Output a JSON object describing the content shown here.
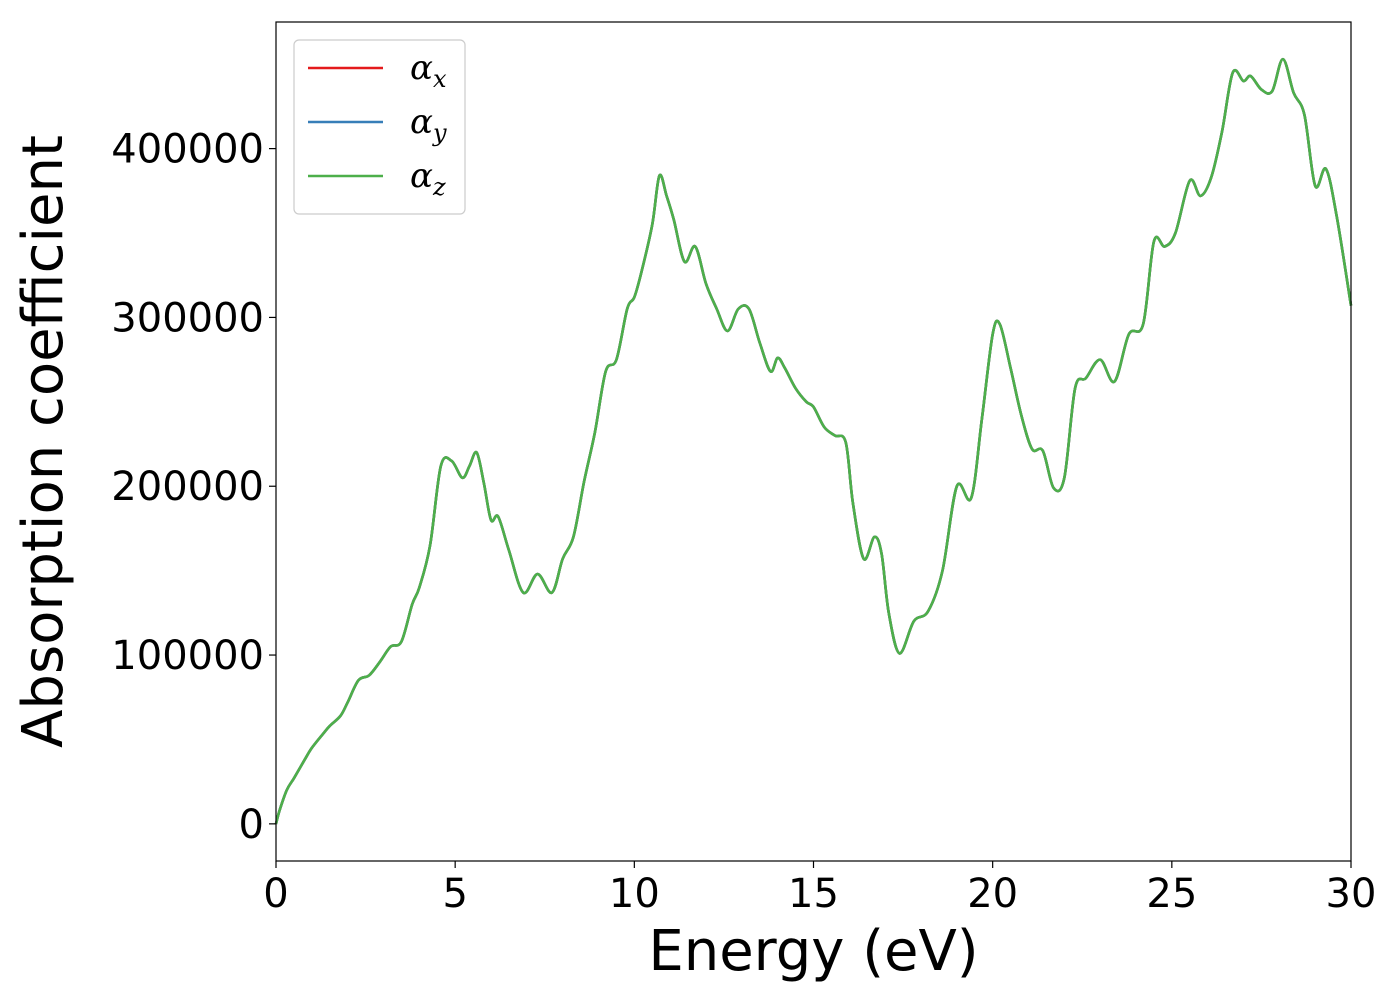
{
  "chart_data": {
    "type": "line",
    "title": "",
    "xlabel": "Energy (eV)",
    "ylabel": "Absorption coefficient",
    "xlim": [
      0,
      30
    ],
    "ylim": [
      -22000,
      475000
    ],
    "x_ticks": [
      0,
      5,
      10,
      15,
      20,
      25,
      30
    ],
    "y_ticks": [
      0,
      100000,
      200000,
      300000,
      400000
    ],
    "grid": false,
    "legend_position": "top-left",
    "series": [
      {
        "name": "α_x",
        "base": "α",
        "sub": "x",
        "color": "#e41a1c",
        "x": [
          0,
          0.1,
          0.3,
          0.5,
          0.8,
          1.0,
          1.3,
          1.5,
          1.8,
          2.0,
          2.3,
          2.6,
          2.9,
          3.2,
          3.5,
          3.8,
          4.0,
          4.3,
          4.6,
          4.9,
          5.2,
          5.4,
          5.6,
          5.8,
          6.0,
          6.2,
          6.5,
          6.9,
          7.3,
          7.7,
          8.0,
          8.3,
          8.6,
          8.9,
          9.2,
          9.5,
          9.8,
          10.0,
          10.2,
          10.5,
          10.7,
          10.9,
          11.1,
          11.4,
          11.7,
          12.0,
          12.3,
          12.6,
          12.9,
          13.2,
          13.5,
          13.8,
          14.0,
          14.2,
          14.5,
          14.8,
          15.0,
          15.3,
          15.6,
          15.9,
          16.1,
          16.4,
          16.7,
          16.9,
          17.1,
          17.4,
          17.8,
          18.2,
          18.6,
          19.0,
          19.4,
          19.7,
          20.0,
          20.2,
          20.5,
          20.8,
          21.1,
          21.4,
          21.7,
          22.0,
          22.3,
          22.6,
          23.0,
          23.4,
          23.8,
          24.2,
          24.5,
          24.8,
          25.1,
          25.5,
          25.8,
          26.1,
          26.4,
          26.7,
          27.0,
          27.2,
          27.5,
          27.8,
          28.1,
          28.4,
          28.7,
          29.0,
          29.3,
          29.6,
          30.0
        ],
        "y": [
          0,
          8000,
          20000,
          27000,
          38000,
          45000,
          53000,
          58000,
          64000,
          72000,
          85000,
          88000,
          96000,
          105000,
          108000,
          130000,
          140000,
          165000,
          212000,
          215000,
          205000,
          212000,
          220000,
          202000,
          180000,
          182000,
          162000,
          137000,
          148000,
          137000,
          157000,
          170000,
          203000,
          232000,
          268000,
          275000,
          305000,
          312000,
          327000,
          355000,
          384000,
          372000,
          358000,
          333000,
          342000,
          320000,
          305000,
          292000,
          305000,
          305000,
          285000,
          268000,
          276000,
          270000,
          258000,
          250000,
          247000,
          235000,
          230000,
          226000,
          190000,
          157000,
          170000,
          160000,
          125000,
          101000,
          120000,
          126000,
          150000,
          200000,
          193000,
          240000,
          290000,
          296000,
          270000,
          242000,
          222000,
          221000,
          199000,
          205000,
          258000,
          264000,
          275000,
          262000,
          290000,
          296000,
          345000,
          342000,
          350000,
          381000,
          372000,
          383000,
          410000,
          445000,
          440000,
          443000,
          435000,
          434000,
          453000,
          433000,
          420000,
          378000,
          388000,
          360000,
          307000
        ]
      },
      {
        "name": "α_y",
        "base": "α",
        "sub": "y",
        "color": "#377eb8",
        "x": [
          0,
          0.1,
          0.3,
          0.5,
          0.8,
          1.0,
          1.3,
          1.5,
          1.8,
          2.0,
          2.3,
          2.6,
          2.9,
          3.2,
          3.5,
          3.8,
          4.0,
          4.3,
          4.6,
          4.9,
          5.2,
          5.4,
          5.6,
          5.8,
          6.0,
          6.2,
          6.5,
          6.9,
          7.3,
          7.7,
          8.0,
          8.3,
          8.6,
          8.9,
          9.2,
          9.5,
          9.8,
          10.0,
          10.2,
          10.5,
          10.7,
          10.9,
          11.1,
          11.4,
          11.7,
          12.0,
          12.3,
          12.6,
          12.9,
          13.2,
          13.5,
          13.8,
          14.0,
          14.2,
          14.5,
          14.8,
          15.0,
          15.3,
          15.6,
          15.9,
          16.1,
          16.4,
          16.7,
          16.9,
          17.1,
          17.4,
          17.8,
          18.2,
          18.6,
          19.0,
          19.4,
          19.7,
          20.0,
          20.2,
          20.5,
          20.8,
          21.1,
          21.4,
          21.7,
          22.0,
          22.3,
          22.6,
          23.0,
          23.4,
          23.8,
          24.2,
          24.5,
          24.8,
          25.1,
          25.5,
          25.8,
          26.1,
          26.4,
          26.7,
          27.0,
          27.2,
          27.5,
          27.8,
          28.1,
          28.4,
          28.7,
          29.0,
          29.3,
          29.6,
          30.0
        ],
        "y": [
          0,
          8000,
          20000,
          27000,
          38000,
          45000,
          53000,
          58000,
          64000,
          72000,
          85000,
          88000,
          96000,
          105000,
          108000,
          130000,
          140000,
          165000,
          212000,
          215000,
          205000,
          212000,
          220000,
          202000,
          180000,
          182000,
          162000,
          137000,
          148000,
          137000,
          157000,
          170000,
          203000,
          232000,
          268000,
          275000,
          305000,
          312000,
          327000,
          355000,
          384000,
          372000,
          358000,
          333000,
          342000,
          320000,
          305000,
          292000,
          305000,
          305000,
          285000,
          268000,
          276000,
          270000,
          258000,
          250000,
          247000,
          235000,
          230000,
          226000,
          190000,
          157000,
          170000,
          160000,
          125000,
          101000,
          120000,
          126000,
          150000,
          200000,
          193000,
          240000,
          290000,
          296000,
          270000,
          242000,
          222000,
          221000,
          199000,
          205000,
          258000,
          264000,
          275000,
          262000,
          290000,
          296000,
          345000,
          342000,
          350000,
          381000,
          372000,
          383000,
          410000,
          445000,
          440000,
          443000,
          435000,
          434000,
          453000,
          433000,
          420000,
          378000,
          388000,
          360000,
          307000
        ]
      },
      {
        "name": "α_z",
        "base": "α",
        "sub": "z",
        "color": "#4daf4a",
        "x": [
          0,
          0.1,
          0.3,
          0.5,
          0.8,
          1.0,
          1.3,
          1.5,
          1.8,
          2.0,
          2.3,
          2.6,
          2.9,
          3.2,
          3.5,
          3.8,
          4.0,
          4.3,
          4.6,
          4.9,
          5.2,
          5.4,
          5.6,
          5.8,
          6.0,
          6.2,
          6.5,
          6.9,
          7.3,
          7.7,
          8.0,
          8.3,
          8.6,
          8.9,
          9.2,
          9.5,
          9.8,
          10.0,
          10.2,
          10.5,
          10.7,
          10.9,
          11.1,
          11.4,
          11.7,
          12.0,
          12.3,
          12.6,
          12.9,
          13.2,
          13.5,
          13.8,
          14.0,
          14.2,
          14.5,
          14.8,
          15.0,
          15.3,
          15.6,
          15.9,
          16.1,
          16.4,
          16.7,
          16.9,
          17.1,
          17.4,
          17.8,
          18.2,
          18.6,
          19.0,
          19.4,
          19.7,
          20.0,
          20.2,
          20.5,
          20.8,
          21.1,
          21.4,
          21.7,
          22.0,
          22.3,
          22.6,
          23.0,
          23.4,
          23.8,
          24.2,
          24.5,
          24.8,
          25.1,
          25.5,
          25.8,
          26.1,
          26.4,
          26.7,
          27.0,
          27.2,
          27.5,
          27.8,
          28.1,
          28.4,
          28.7,
          29.0,
          29.3,
          29.6,
          30.0
        ],
        "y": [
          0,
          8000,
          20000,
          27000,
          38000,
          45000,
          53000,
          58000,
          64000,
          72000,
          85000,
          88000,
          96000,
          105000,
          108000,
          130000,
          140000,
          165000,
          212000,
          215000,
          205000,
          212000,
          220000,
          202000,
          180000,
          182000,
          162000,
          137000,
          148000,
          137000,
          157000,
          170000,
          203000,
          232000,
          268000,
          275000,
          305000,
          312000,
          327000,
          355000,
          384000,
          372000,
          358000,
          333000,
          342000,
          320000,
          305000,
          292000,
          305000,
          305000,
          285000,
          268000,
          276000,
          270000,
          258000,
          250000,
          247000,
          235000,
          230000,
          226000,
          190000,
          157000,
          170000,
          160000,
          125000,
          101000,
          120000,
          126000,
          150000,
          200000,
          193000,
          240000,
          290000,
          296000,
          270000,
          242000,
          222000,
          221000,
          199000,
          205000,
          258000,
          264000,
          275000,
          262000,
          290000,
          296000,
          345000,
          342000,
          350000,
          381000,
          372000,
          383000,
          410000,
          445000,
          440000,
          443000,
          435000,
          434000,
          453000,
          433000,
          420000,
          378000,
          388000,
          360000,
          307000
        ]
      }
    ]
  }
}
